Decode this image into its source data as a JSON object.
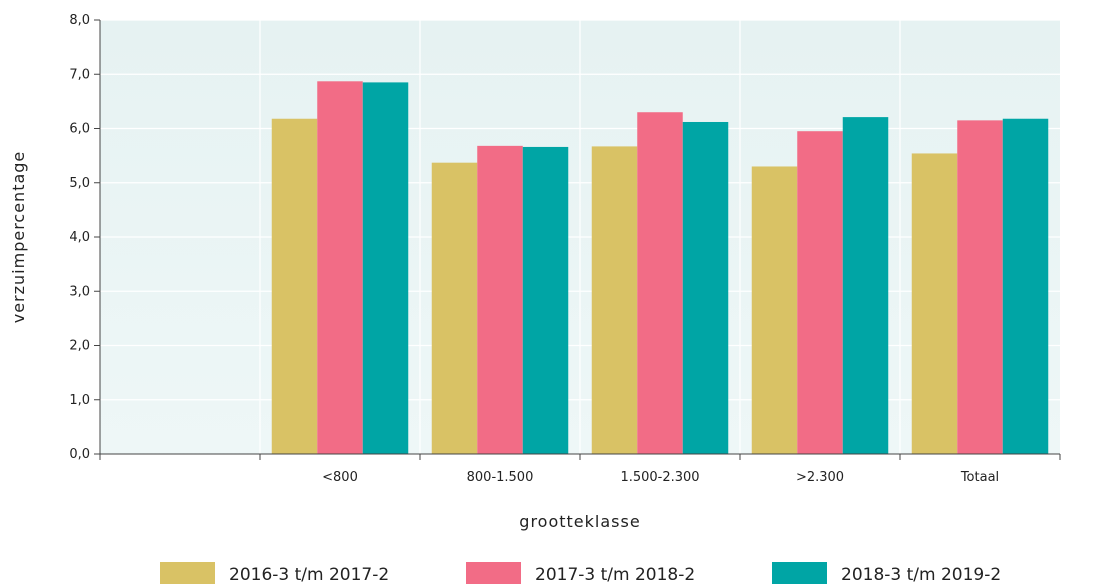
{
  "chart_data": {
    "type": "bar",
    "categories": [
      "<800",
      "800-1.500",
      "1.500-2.300",
      ">2.300",
      "Totaal"
    ],
    "series": [
      {
        "name": "2016-3 t/m 2017-2",
        "color": "#d9c265",
        "values": [
          6.18,
          5.37,
          5.67,
          5.3,
          5.54
        ]
      },
      {
        "name": "2017-3 t/m 2018-2",
        "color": "#f26c86",
        "values": [
          6.87,
          5.68,
          6.3,
          5.95,
          6.15
        ]
      },
      {
        "name": "2018-3 t/m 2019-2",
        "color": "#00a5a5",
        "values": [
          6.85,
          5.66,
          6.12,
          6.21,
          6.18
        ]
      }
    ],
    "xlabel": "grootteklasse",
    "ylabel": "verzuimpercentage",
    "ylim": [
      0,
      8
    ],
    "yticks": [
      "0,0",
      "1,0",
      "2,0",
      "3,0",
      "4,0",
      "5,0",
      "6,0",
      "7,0",
      "8,0"
    ],
    "grid": true,
    "legend_position": "bottom",
    "plot_background": "#e6f2f2"
  }
}
